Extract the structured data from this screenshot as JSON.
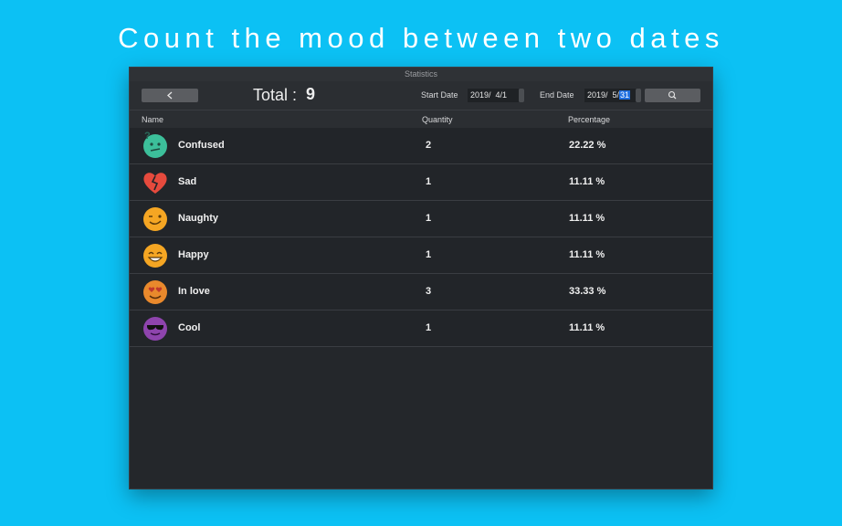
{
  "headline": "Count the mood between two dates",
  "window": {
    "title": "Statistics"
  },
  "toolbar": {
    "total_label": "Total :",
    "total_value": 9,
    "start_label": "Start Date",
    "start_date": {
      "prefix": "2019/  4/",
      "day": "1"
    },
    "end_label": "End Date",
    "end_date": {
      "prefix": "2019/  5/",
      "day": "31"
    }
  },
  "table": {
    "columns": [
      "Name",
      "Quantity",
      "Percentage"
    ],
    "rows": [
      [
        "Confused",
        2,
        "22.22 %"
      ],
      [
        "Sad",
        1,
        "11.11 %"
      ],
      [
        "Naughty",
        1,
        "11.11 %"
      ],
      [
        "Happy",
        1,
        "11.11 %"
      ],
      [
        "In love",
        3,
        "33.33 %"
      ],
      [
        "Cool",
        1,
        "11.11 %"
      ]
    ]
  }
}
